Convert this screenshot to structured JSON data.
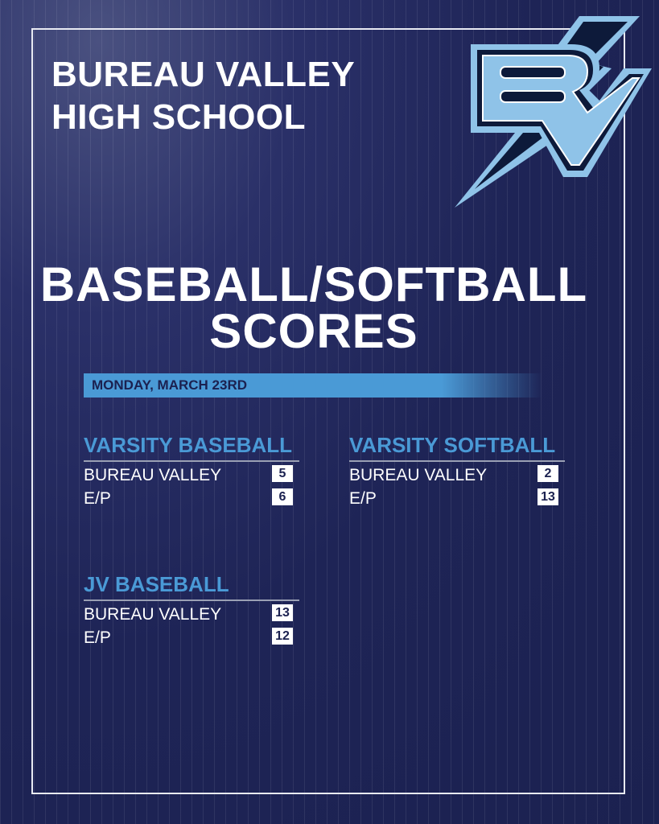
{
  "header": {
    "school_line1": "BUREAU VALLEY",
    "school_line2": "HIGH SCHOOL",
    "logo_text": "BV"
  },
  "title": {
    "line1": "BASEBALL/SOFTBALL",
    "line2": "SCORES"
  },
  "date": "MONDAY, MARCH 23RD",
  "colors": {
    "background": "#1e2456",
    "accent": "#4a9ad6",
    "text": "#ffffff"
  },
  "games": [
    {
      "title": "VARSITY BASEBALL",
      "teams": [
        {
          "name": "BUREAU VALLEY",
          "score": "5"
        },
        {
          "name": "E/P",
          "score": "6"
        }
      ]
    },
    {
      "title": "VARSITY SOFTBALL",
      "teams": [
        {
          "name": "BUREAU VALLEY",
          "score": "2"
        },
        {
          "name": "E/P",
          "score": "13"
        }
      ]
    },
    {
      "title": "JV BASEBALL",
      "teams": [
        {
          "name": "BUREAU VALLEY",
          "score": "13"
        },
        {
          "name": "E/P",
          "score": "12"
        }
      ]
    }
  ]
}
